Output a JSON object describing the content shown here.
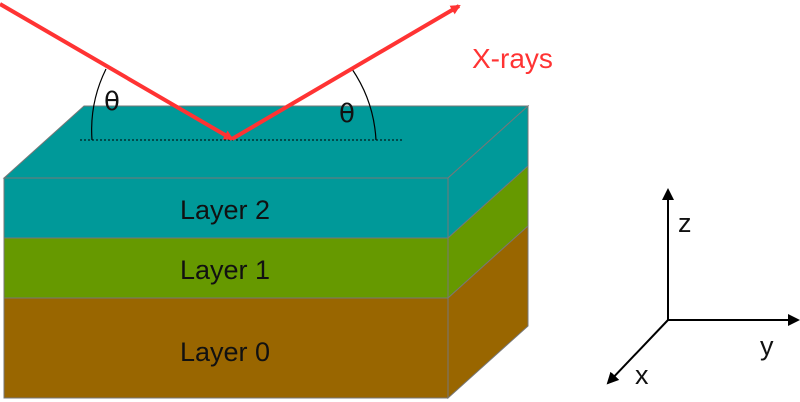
{
  "layers": [
    {
      "label": "Layer 2",
      "color": "#009999"
    },
    {
      "label": "Layer 1",
      "color": "#669900"
    },
    {
      "label": "Layer 0",
      "color": "#996600"
    }
  ],
  "xray": {
    "label": "X-rays",
    "color": "#ff3333"
  },
  "angles": {
    "left": "θ",
    "right": "θ"
  },
  "axes": {
    "z": "z",
    "y": "y",
    "x": "x"
  }
}
